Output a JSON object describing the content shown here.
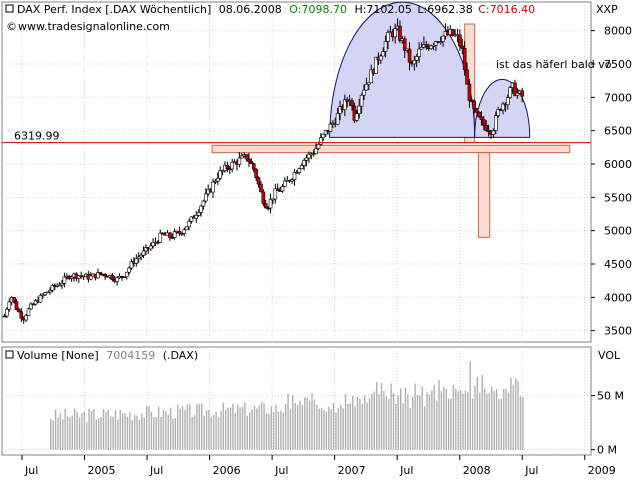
{
  "header": {
    "instrument": "DAX Perf. Index [.DAX Wöchentlich]",
    "date": "08.06.2008",
    "open_label": "O:7098.70",
    "high_label": "H:7102.05",
    "low_label": "L:6962.38",
    "close_label": "C:7016.40",
    "website": "www.tradesignalonline.com",
    "price_unit": "XXP",
    "annotation": "ist das häferl bald vo"
  },
  "volume_panel": {
    "title": "Volume [None]",
    "value": "7004159",
    "symbol": "(.DAX)",
    "unit": "VOL",
    "ticks": [
      {
        "label": "50 M",
        "value": 50
      },
      {
        "label": "0 M",
        "value": 0
      }
    ]
  },
  "colors": {
    "up_candle": "#ffffff",
    "down_candle": "#cc0000",
    "volume_bar": "#b0b0b0",
    "horizontal_line": "#cc0000",
    "highlight_fill": "#f8ddd2",
    "highlight_stroke": "#cc6644",
    "cup_fill": "#d4d4f4",
    "cup_stroke": "#101070",
    "grid": "#d0d0d0",
    "annotation_text": "#2222aa"
  },
  "chart_data": {
    "type": "candlestick",
    "title": "DAX Perf. Index [.DAX Wöchentlich]",
    "period": "weekly",
    "y_axis": {
      "ticks": [
        3500,
        4000,
        4500,
        5000,
        5500,
        6000,
        6500,
        7000,
        7500,
        8000
      ],
      "ylim": [
        3330,
        8430
      ]
    },
    "x_axis": {
      "labels": [
        {
          "label": "Jul",
          "x": 2004.5
        },
        {
          "label": "2005",
          "x": 2005.0
        },
        {
          "label": "Jul",
          "x": 2005.5
        },
        {
          "label": "2006",
          "x": 2006.0
        },
        {
          "label": "Jul",
          "x": 2006.5
        },
        {
          "label": "2007",
          "x": 2007.0
        },
        {
          "label": "Jul",
          "x": 2007.5
        },
        {
          "label": "2008",
          "x": 2008.0
        },
        {
          "label": "Jul",
          "x": 2008.5
        },
        {
          "label": "2009",
          "x": 2009.0
        }
      ],
      "xlim": [
        2004.34,
        2009.05
      ]
    },
    "horizontal_line": {
      "value": 6319.99,
      "label": "6319.99"
    },
    "path_points": [
      [
        2004.36,
        3720
      ],
      [
        2004.41,
        4040
      ],
      [
        2004.46,
        3820
      ],
      [
        2004.51,
        3680
      ],
      [
        2004.56,
        3840
      ],
      [
        2004.62,
        3950
      ],
      [
        2004.68,
        4050
      ],
      [
        2004.75,
        4150
      ],
      [
        2004.82,
        4230
      ],
      [
        2004.88,
        4330
      ],
      [
        2004.96,
        4330
      ],
      [
        2005.04,
        4300
      ],
      [
        2005.12,
        4350
      ],
      [
        2005.18,
        4340
      ],
      [
        2005.26,
        4270
      ],
      [
        2005.32,
        4350
      ],
      [
        2005.4,
        4560
      ],
      [
        2005.48,
        4680
      ],
      [
        2005.56,
        4820
      ],
      [
        2005.62,
        4940
      ],
      [
        2005.68,
        4910
      ],
      [
        2005.76,
        4970
      ],
      [
        2005.84,
        5120
      ],
      [
        2005.92,
        5350
      ],
      [
        2006.0,
        5600
      ],
      [
        2006.06,
        5820
      ],
      [
        2006.14,
        5950
      ],
      [
        2006.22,
        6040
      ],
      [
        2006.3,
        6110
      ],
      [
        2006.36,
        5900
      ],
      [
        2006.42,
        5500
      ],
      [
        2006.46,
        5360
      ],
      [
        2006.52,
        5560
      ],
      [
        2006.58,
        5640
      ],
      [
        2006.66,
        5820
      ],
      [
        2006.74,
        6040
      ],
      [
        2006.84,
        6200
      ],
      [
        2006.92,
        6450
      ],
      [
        2007.0,
        6650
      ],
      [
        2007.06,
        6850
      ],
      [
        2007.12,
        7000
      ],
      [
        2007.16,
        6700
      ],
      [
        2007.22,
        7100
      ],
      [
        2007.28,
        7300
      ],
      [
        2007.36,
        7650
      ],
      [
        2007.44,
        7950
      ],
      [
        2007.5,
        8000
      ],
      [
        2007.56,
        7750
      ],
      [
        2007.62,
        7450
      ],
      [
        2007.68,
        7700
      ],
      [
        2007.76,
        7800
      ],
      [
        2007.84,
        7900
      ],
      [
        2007.92,
        7950
      ],
      [
        2007.98,
        7900
      ],
      [
        2008.02,
        7700
      ],
      [
        2008.06,
        7150
      ],
      [
        2008.1,
        6850
      ],
      [
        2008.14,
        6700
      ],
      [
        2008.18,
        6600
      ],
      [
        2008.22,
        6550
      ],
      [
        2008.26,
        6500
      ],
      [
        2008.32,
        6850
      ],
      [
        2008.38,
        7000
      ],
      [
        2008.42,
        7150
      ],
      [
        2008.46,
        7050
      ],
      [
        2008.5,
        7016
      ]
    ],
    "cup_left": {
      "x_start": 2006.96,
      "x_end": 2008.12,
      "rim": 6400,
      "peak": 8430
    },
    "cup_right": {
      "x_start": 2008.12,
      "x_end": 2008.56,
      "rim": 6400,
      "peak": 7270
    },
    "highlight_rects": [
      {
        "x0": 2006.02,
        "x1": 2008.88,
        "y0": 6170,
        "y1": 6280
      },
      {
        "x0": 2008.04,
        "x1": 2008.12,
        "y0": 6320,
        "y1": 8100
      },
      {
        "x0": 2008.15,
        "x1": 2008.24,
        "y0": 4900,
        "y1": 6170
      }
    ],
    "volume": {
      "ylim": [
        -5,
        95
      ],
      "x_start": 2004.73,
      "x_end": 2008.52,
      "spike_x": 2008.08,
      "spike_value": 82
    },
    "grid": true
  }
}
